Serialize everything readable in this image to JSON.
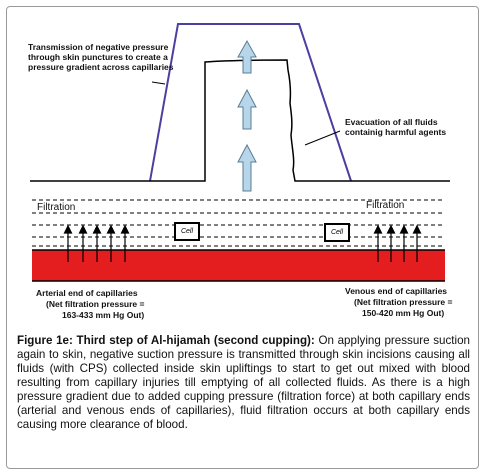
{
  "labels": {
    "negative_pressure": "Transmission of negative pressure through skin punctures to create a pressure gradient  across capillaries",
    "evacuation": "Evacuation of all fluids containig harmful agents",
    "filtration_left": "Filtration",
    "filtration_right": "Filtration",
    "cell_left": "Cell",
    "cell_right": "Cell",
    "arterial_title": "Arterial end of capillaries",
    "arterial_pressure_1": "(Net filtration pressure =",
    "arterial_pressure_2": "163-433 mm Hg Out)",
    "venous_title": "Venous end of capillaries",
    "venous_pressure_1": "(Net filtration pressure =",
    "venous_pressure_2": "150-420 mm Hg Out)"
  },
  "caption": {
    "title": "Figure 1e: Third step of Al-hijamah (second cupping):",
    "body": " On applying pressure suction again to skin, negative suction pressure is transmitted through skin incisions causing all fluids (with CPS) collected inside skin upliftings to start to get out mixed with blood resulting from capillary injuries till emptying of all collected fluids. As there is a high pressure gradient due to added cupping pressure (filtration force) at both capillary ends (arterial and venous ends of capillaries), fluid filtration occurs at both capillary ends causing more clearance of blood."
  },
  "colors": {
    "cup": "#4b3fa0",
    "arrow_fill": "#b8d6ea",
    "arrow_stroke": "#5a7c95",
    "capillary": "#e41e1e"
  }
}
